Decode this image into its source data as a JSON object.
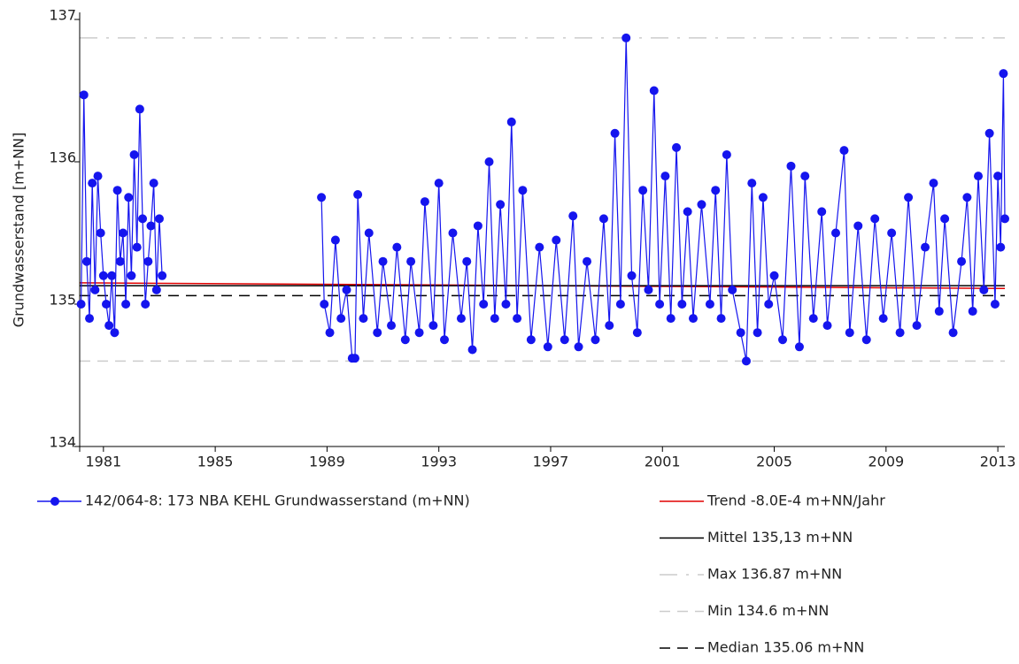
{
  "chart_data": {
    "type": "line",
    "ylabel": "Grundwasserstand [m+NN]",
    "xlim": [
      1980.15,
      2013.25
    ],
    "xticks": [
      1981,
      1985,
      1989,
      1993,
      1997,
      2001,
      2005,
      2009,
      2013
    ],
    "ylim": [
      134,
      137
    ],
    "yticks": [
      134,
      135,
      136,
      137
    ],
    "series": [
      {
        "name": "142/064-8: 173 NBA KEHL  Grundwasserstand (m+NN)",
        "color": "#1515ee",
        "x": [
          1980.2,
          1980.3,
          1980.4,
          1980.5,
          1980.6,
          1980.7,
          1980.8,
          1980.9,
          1981.0,
          1981.1,
          1981.2,
          1981.3,
          1981.4,
          1981.5,
          1981.6,
          1981.7,
          1981.8,
          1981.9,
          1982.0,
          1982.1,
          1982.2,
          1982.3,
          1982.4,
          1982.5,
          1982.6,
          1982.7,
          1982.8,
          1982.9,
          1983.0,
          1983.1,
          1986,
          1988.8,
          1988.9,
          1989.1,
          1989.3,
          1989.5,
          1989.7,
          1989.9,
          1990.0,
          1990.1,
          1990.3,
          1990.5,
          1990.8,
          1991.0,
          1991.3,
          1991.5,
          1991.8,
          1992.0,
          1992.3,
          1992.5,
          1992.8,
          1993.0,
          1993.2,
          1993.5,
          1993.8,
          1994.0,
          1994.2,
          1994.4,
          1994.6,
          1994.8,
          1995.0,
          1995.2,
          1995.4,
          1995.6,
          1995.8,
          1996.0,
          1996.3,
          1996.6,
          1996.9,
          1997.2,
          1997.5,
          1997.8,
          1998.0,
          1998.3,
          1998.6,
          1998.9,
          1999.1,
          1999.3,
          1999.5,
          1999.7,
          1999.9,
          2000.1,
          2000.3,
          2000.5,
          2000.7,
          2000.9,
          2001.1,
          2001.3,
          2001.5,
          2001.7,
          2001.9,
          2002.1,
          2002.4,
          2002.7,
          2002.9,
          2003.1,
          2003.3,
          2003.5,
          2003.8,
          2004.0,
          2004.2,
          2004.4,
          2004.6,
          2004.8,
          2005.0,
          2005.3,
          2005.6,
          2005.9,
          2006.1,
          2006.4,
          2006.7,
          2006.9,
          2007.2,
          2007.5,
          2007.7,
          2008.0,
          2008.3,
          2008.6,
          2008.9,
          2009.2,
          2009.5,
          2009.8,
          2010.1,
          2010.4,
          2010.7,
          2010.9,
          2011.1,
          2011.4,
          2011.7,
          2011.9,
          2012.1,
          2012.3,
          2012.5,
          2012.7,
          2012.9,
          2013.0,
          2013.1,
          2013.2,
          2013.25
        ],
        "values": [
          135.0,
          136.47,
          135.3,
          134.9,
          135.85,
          135.1,
          135.9,
          135.5,
          135.2,
          135.0,
          134.85,
          135.2,
          134.8,
          135.8,
          135.3,
          135.5,
          135.0,
          135.75,
          135.2,
          136.05,
          135.4,
          136.37,
          135.6,
          135.0,
          135.3,
          135.55,
          135.85,
          135.1,
          135.6,
          135.2,
          null,
          135.75,
          135.0,
          134.8,
          135.45,
          134.9,
          135.1,
          134.62,
          134.62,
          135.77,
          134.9,
          135.5,
          134.8,
          135.3,
          134.85,
          135.4,
          134.75,
          135.3,
          134.8,
          135.72,
          134.85,
          135.85,
          134.75,
          135.5,
          134.9,
          135.3,
          134.68,
          135.55,
          135.0,
          136.0,
          134.9,
          135.7,
          135.0,
          136.28,
          134.9,
          135.8,
          134.75,
          135.4,
          134.7,
          135.45,
          134.75,
          135.62,
          134.7,
          135.3,
          134.75,
          135.6,
          134.85,
          136.2,
          135.0,
          136.87,
          135.2,
          134.8,
          135.8,
          135.1,
          136.5,
          135.0,
          135.9,
          134.9,
          136.1,
          135.0,
          135.65,
          134.9,
          135.7,
          135.0,
          135.8,
          134.9,
          136.05,
          135.1,
          134.8,
          134.6,
          135.85,
          134.8,
          135.75,
          135.0,
          135.2,
          134.75,
          135.97,
          134.7,
          135.9,
          134.9,
          135.65,
          134.85,
          135.5,
          136.08,
          134.8,
          135.55,
          134.75,
          135.6,
          134.9,
          135.5,
          134.8,
          135.75,
          134.85,
          135.4,
          135.85,
          134.95,
          135.6,
          134.8,
          135.3,
          135.75,
          134.95,
          135.9,
          135.1,
          136.2,
          135.0,
          135.9,
          135.4,
          136.62,
          135.6
        ]
      }
    ],
    "reference_lines": [
      {
        "name": "Trend -8.0E-4 m+NN/Jahr",
        "color": "#e00000",
        "style": "solid",
        "values": [
          135.15,
          135.11
        ]
      },
      {
        "name": "Mittel 135,13 m+NN",
        "color": "#000000",
        "style": "solid",
        "value": 135.13
      },
      {
        "name": "Max 136.87 m+NN",
        "color": "#cccccc",
        "style": "dashdot",
        "value": 136.87
      },
      {
        "name": "Min 134.6 m+NN",
        "color": "#cccccc",
        "style": "dashed",
        "value": 134.6
      },
      {
        "name": "Median 135.06 m+NN",
        "color": "#000000",
        "style": "dashed",
        "value": 135.06
      }
    ]
  }
}
